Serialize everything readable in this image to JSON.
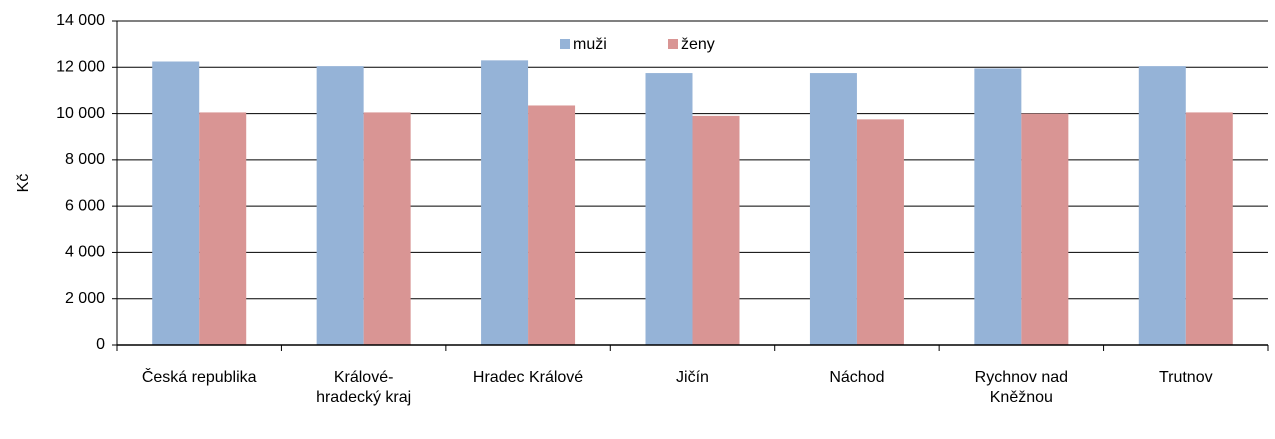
{
  "chart_data": {
    "type": "bar",
    "y_label": "Kč",
    "categories": [
      "Česká republika",
      "Králové-hradecký kraj",
      "Hradec Králové",
      "Jičín",
      "Náchod",
      "Rychnov nad Kněžnou",
      "Trutnov"
    ],
    "series": [
      {
        "name": "muži",
        "color": "#95b3d7",
        "values": [
          12250,
          12050,
          12300,
          11750,
          11750,
          11950,
          12050
        ]
      },
      {
        "name": "ženy",
        "color": "#d99594",
        "values": [
          10050,
          10050,
          10350,
          9900,
          9750,
          10000,
          10050
        ]
      }
    ],
    "ylim": [
      0,
      14000
    ],
    "yticks": [
      0,
      {
        "value": 2000,
        "label": "2 000"
      },
      {
        "value": 4000,
        "label": "4 000"
      },
      {
        "value": 6000,
        "label": "6 000"
      },
      {
        "value": 8000,
        "label": "8 000"
      },
      {
        "value": 10000,
        "label": "10 000"
      },
      {
        "value": 12000,
        "label": "12 000"
      },
      {
        "value": 14000,
        "label": "14 000"
      }
    ],
    "grid": true,
    "legend": "top"
  }
}
